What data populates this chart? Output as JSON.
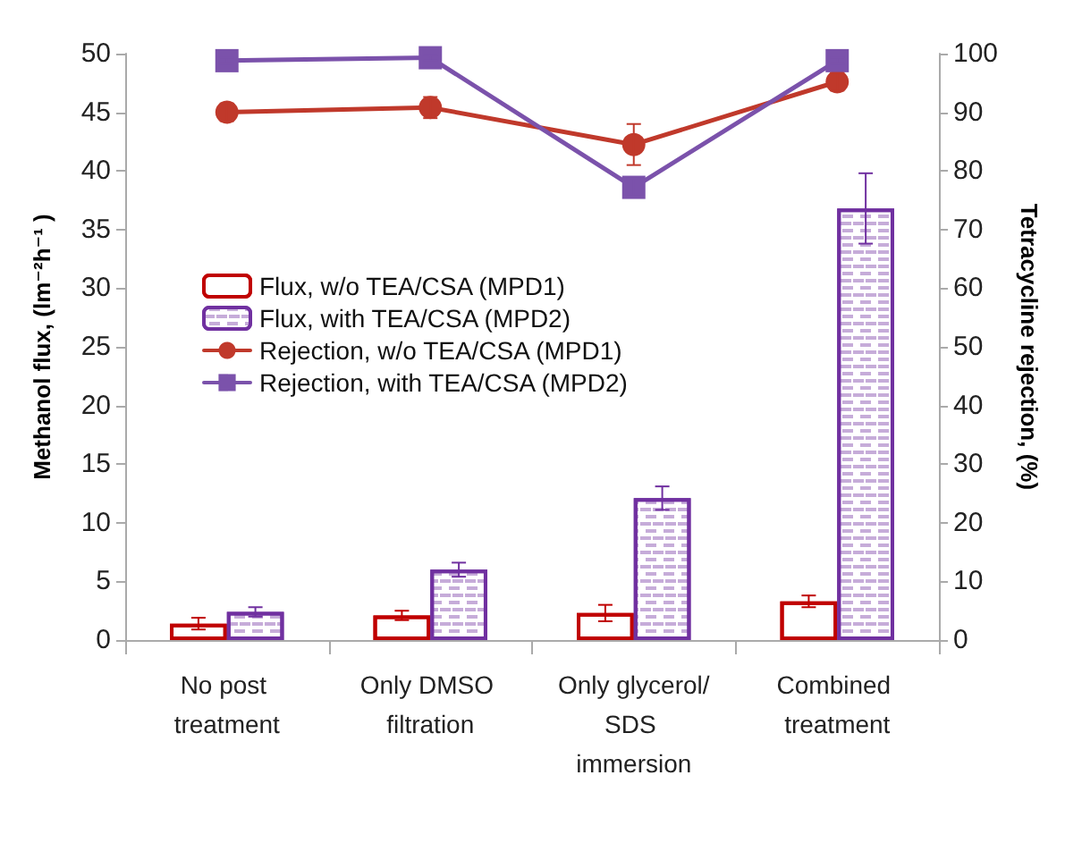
{
  "chart_data": {
    "type": "bar",
    "ylabel": "Methanol flux, (lm⁻²h⁻¹ )",
    "y2label": "Tetracycline rejection, (%)",
    "categories": [
      "No post treatment",
      "Only DMSO filtration",
      "Only glycerol/SDS immersion",
      "Combined treatment"
    ],
    "series": [
      {
        "name": "Flux, w/o TEA/CSA (MPD1)",
        "color": "#c00000",
        "values": [
          1.4,
          2.1,
          2.3,
          3.3
        ],
        "errors": [
          0.5,
          0.4,
          0.7,
          0.5
        ]
      },
      {
        "name": "Flux, with TEA/CSA (MPD2)",
        "color": "#7030a0",
        "values": [
          2.4,
          6.0,
          12.1,
          36.8
        ],
        "errors": [
          0.4,
          0.6,
          1.0,
          3.0
        ]
      },
      {
        "name": "Rejection, w/o TEA/CSA (MPD1)",
        "type": "line",
        "axis": "y2",
        "marker": "circle",
        "color": "#c0392b",
        "values": [
          90,
          90.8,
          84.5,
          95.2
        ],
        "errors": [
          1.5,
          1.8,
          3.5,
          1.5
        ]
      },
      {
        "name": "Rejection, with TEA/CSA (MPD2)",
        "type": "line",
        "axis": "y2",
        "marker": "square",
        "color": "#7b52ab",
        "values": [
          98.8,
          99.3,
          77.2,
          98.8
        ],
        "errors": [
          0.5,
          0.5,
          1.5,
          0.5
        ]
      }
    ],
    "ylim": [
      0,
      50
    ],
    "yticks": [
      0,
      5,
      10,
      15,
      20,
      25,
      30,
      35,
      40,
      45,
      50
    ],
    "y2lim": [
      0,
      100
    ],
    "y2ticks": [
      0,
      10,
      20,
      30,
      40,
      50,
      60,
      70,
      80,
      90,
      100
    ],
    "legend": "left",
    "grid": false
  }
}
